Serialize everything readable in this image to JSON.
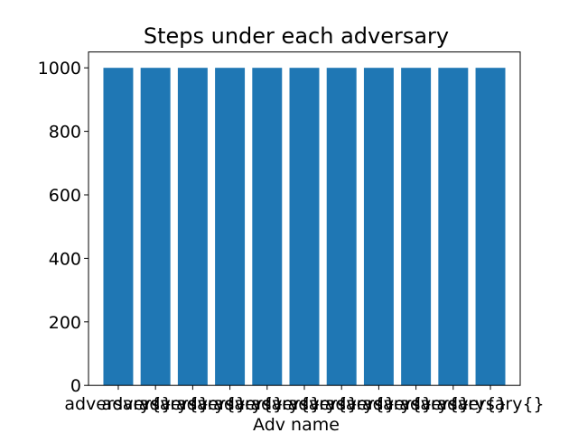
{
  "chart_data": {
    "type": "bar",
    "title": "Steps under each adversary",
    "xlabel": "Adv name",
    "ylabel": "",
    "categories": [
      "adversary{}",
      "adversary{}",
      "adversary{}",
      "adversary{}",
      "adversary{}",
      "adversary{}",
      "adversary{}",
      "adversary{}",
      "adversary{}",
      "adversary{}",
      "adversary{}"
    ],
    "values": [
      1000,
      1000,
      1000,
      1000,
      1000,
      1000,
      1000,
      1000,
      1000,
      1000,
      1000
    ],
    "ylim": [
      0,
      1050
    ],
    "yticks": [
      0,
      200,
      400,
      600,
      800,
      1000
    ],
    "grid": false,
    "bar_color": "#1f77b4"
  }
}
